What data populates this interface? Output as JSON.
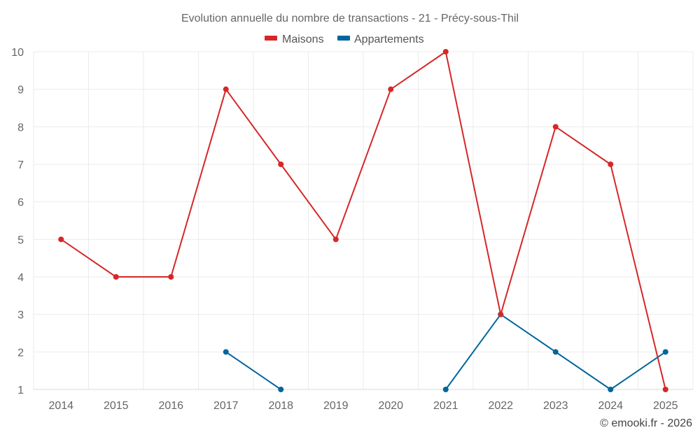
{
  "chart_data": {
    "type": "line",
    "title": "Evolution annuelle du nombre de transactions - 21 - Précy-sous-Thil",
    "categories": [
      "2014",
      "2015",
      "2016",
      "2017",
      "2018",
      "2019",
      "2020",
      "2021",
      "2022",
      "2023",
      "2024",
      "2025"
    ],
    "ylim": [
      1,
      10
    ],
    "yticks": [
      "1",
      "2",
      "3",
      "4",
      "5",
      "6",
      "7",
      "8",
      "9",
      "10"
    ],
    "grid": true,
    "legend_position": "top-center",
    "series": [
      {
        "name": "Maisons",
        "color": "#d62728",
        "values": [
          5,
          4,
          4,
          9,
          7,
          5,
          9,
          10,
          3,
          8,
          7,
          1
        ]
      },
      {
        "name": "Appartements",
        "color": "#00669c",
        "values": [
          null,
          null,
          null,
          2,
          1,
          null,
          null,
          1,
          3,
          2,
          1,
          2
        ]
      }
    ],
    "credit": "© emooki.fr - 2026"
  }
}
